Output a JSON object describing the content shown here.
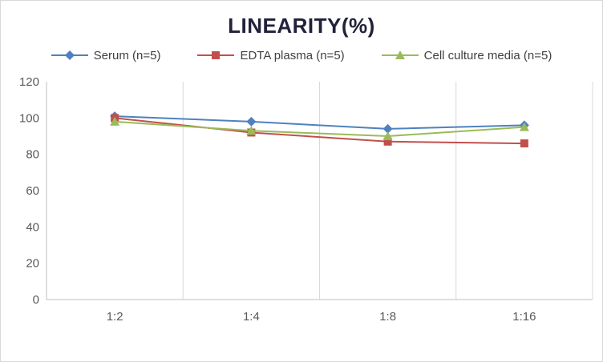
{
  "chart_data": {
    "type": "line",
    "title": "LINEARITY(%)",
    "categories": [
      "1:2",
      "1:4",
      "1:8",
      "1:16"
    ],
    "series": [
      {
        "name": "Serum (n=5)",
        "color": "#4F81BD",
        "marker": "diamond",
        "values": [
          101,
          98,
          94,
          96
        ]
      },
      {
        "name": "EDTA plasma (n=5)",
        "color": "#C0504D",
        "marker": "square",
        "values": [
          100,
          92,
          87,
          86
        ]
      },
      {
        "name": "Cell culture media (n=5)",
        "color": "#9BBB59",
        "marker": "triangle",
        "values": [
          98,
          93,
          90,
          95
        ]
      }
    ],
    "ylim": [
      0,
      120
    ],
    "ytick_step": 20,
    "ytick_labels": [
      "0",
      "20",
      "40",
      "60",
      "80",
      "100",
      "120"
    ],
    "grid": "vertical-between-categories",
    "legend_position": "top"
  },
  "style": {
    "title_color": "#21213B",
    "axis_label_color": "#595959",
    "gridline_color": "#D9D9D9",
    "axis_line_color": "#BFBFBF",
    "background": "#FFFFFF",
    "border_color": "#D9D9D9"
  }
}
